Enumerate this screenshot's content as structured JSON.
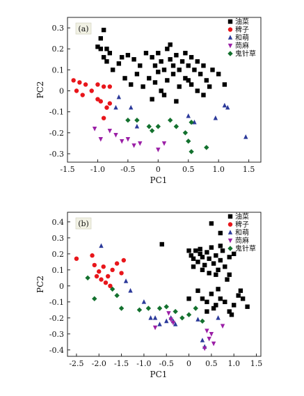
{
  "chart_data": [
    {
      "panel": "(a)",
      "type": "scatter",
      "xlabel": "PC1",
      "ylabel": "PC2",
      "xlim": [
        -1.5,
        1.7
      ],
      "ylim": [
        -0.34,
        0.35
      ],
      "xticks": [
        -1.5,
        -1.0,
        -0.5,
        0,
        0.5,
        1.0,
        1.5
      ],
      "xtick_labels": [
        "-1.5",
        "-1.0",
        "-0.5",
        "0",
        "0.5",
        "1.0",
        "1.5"
      ],
      "yticks": [
        -0.3,
        -0.2,
        -0.1,
        0,
        0.1,
        0.2,
        0.3
      ],
      "ytick_labels": [
        "-0.3",
        "-0.2",
        "-0.1",
        "0",
        "0.1",
        "0.2",
        "0.3"
      ],
      "legend_position": "top-right",
      "series": [
        {
          "name": "油菜",
          "marker": "square",
          "color": "#000000",
          "points": [
            [
              -0.9,
              0.29
            ],
            [
              -0.95,
              0.25
            ],
            [
              -1.0,
              0.21
            ],
            [
              -0.95,
              0.2
            ],
            [
              -0.85,
              0.2
            ],
            [
              -0.8,
              0.18
            ],
            [
              -0.9,
              0.16
            ],
            [
              -0.6,
              0.16
            ],
            [
              -0.5,
              0.17
            ],
            [
              -0.4,
              0.15
            ],
            [
              -0.3,
              0.12
            ],
            [
              -0.2,
              0.18
            ],
            [
              -0.1,
              0.16
            ],
            [
              -0.05,
              0.12
            ],
            [
              0,
              0.18
            ],
            [
              0.05,
              0.14
            ],
            [
              0.1,
              0.1
            ],
            [
              0.15,
              0.2
            ],
            [
              0.2,
              0.15
            ],
            [
              0.25,
              0.12
            ],
            [
              0.3,
              0.17
            ],
            [
              0.35,
              0.1
            ],
            [
              0.4,
              0.14
            ],
            [
              0.45,
              0.18
            ],
            [
              0.5,
              0.12
            ],
            [
              0.55,
              0.16
            ],
            [
              0.6,
              0.1
            ],
            [
              0.65,
              0.14
            ],
            [
              0.7,
              0.08
            ],
            [
              0.75,
              0.12
            ],
            [
              0.8,
              0.05
            ],
            [
              0.9,
              0.1
            ],
            [
              1.0,
              0.08
            ],
            [
              1.1,
              0.03
            ],
            [
              -0.85,
              0.14
            ],
            [
              -0.75,
              0.1
            ],
            [
              -0.65,
              0.13
            ],
            [
              -0.55,
              0.06
            ],
            [
              -0.45,
              0.03
            ],
            [
              -0.35,
              0.08
            ],
            [
              -0.25,
              0.02
            ],
            [
              -0.15,
              0.06
            ],
            [
              -0.05,
              0.04
            ],
            [
              0.05,
              0.0
            ],
            [
              0.15,
              0.05
            ],
            [
              0.25,
              0.08
            ],
            [
              0.35,
              0.02
            ],
            [
              0.45,
              0.06
            ],
            [
              0.55,
              0.03
            ],
            [
              0.65,
              0.0
            ],
            [
              0.75,
              -0.02
            ],
            [
              0.85,
              0.02
            ],
            [
              0.3,
              -0.05
            ],
            [
              0.1,
              -0.02
            ],
            [
              -0.1,
              -0.04
            ],
            [
              0.2,
              0.22
            ],
            [
              0.5,
              0.05
            ],
            [
              0.0,
              0.09
            ]
          ]
        },
        {
          "name": "稗子",
          "marker": "circle",
          "color": "#e8161b",
          "points": [
            [
              -1.4,
              0.05
            ],
            [
              -1.35,
              0.0
            ],
            [
              -1.3,
              0.04
            ],
            [
              -1.25,
              -0.02
            ],
            [
              -1.2,
              0.03
            ],
            [
              -1.1,
              0.0
            ],
            [
              -1.0,
              0.03
            ],
            [
              -0.9,
              0.02
            ],
            [
              -0.8,
              0.02
            ],
            [
              -0.95,
              -0.05
            ],
            [
              -0.85,
              -0.08
            ],
            [
              -0.8,
              -0.06
            ],
            [
              -0.9,
              -0.13
            ],
            [
              -1.0,
              -0.04
            ]
          ]
        },
        {
          "name": "和萌",
          "marker": "triangle-up",
          "color": "#2c3a9a",
          "points": [
            [
              -0.65,
              -0.03
            ],
            [
              -0.7,
              -0.08
            ],
            [
              -0.45,
              -0.08
            ],
            [
              -0.35,
              -0.17
            ],
            [
              0.5,
              -0.12
            ],
            [
              0.6,
              -0.15
            ],
            [
              0.95,
              -0.13
            ],
            [
              1.1,
              -0.07
            ],
            [
              1.15,
              -0.08
            ],
            [
              1.45,
              -0.22
            ]
          ]
        },
        {
          "name": "茼麻",
          "marker": "triangle-down",
          "color": "#9b1fa6",
          "points": [
            [
              -1.05,
              -0.18
            ],
            [
              -0.8,
              -0.19
            ],
            [
              -0.7,
              -0.21
            ],
            [
              -0.6,
              -0.24
            ],
            [
              -0.5,
              -0.23
            ],
            [
              -0.4,
              -0.26
            ],
            [
              -0.3,
              -0.25
            ],
            [
              0.0,
              -0.28
            ],
            [
              0.1,
              -0.25
            ],
            [
              -0.95,
              -0.23
            ]
          ]
        },
        {
          "name": "鬼针草",
          "marker": "diamond",
          "color": "#13712e",
          "points": [
            [
              -0.5,
              -0.14
            ],
            [
              -0.35,
              -0.14
            ],
            [
              -0.15,
              -0.17
            ],
            [
              -0.1,
              -0.19
            ],
            [
              0.0,
              -0.17
            ],
            [
              0.2,
              -0.14
            ],
            [
              0.3,
              -0.17
            ],
            [
              0.45,
              -0.2
            ],
            [
              0.5,
              -0.24
            ],
            [
              0.55,
              -0.29
            ],
            [
              0.8,
              -0.27
            ],
            [
              0.55,
              -0.15
            ]
          ]
        }
      ]
    },
    {
      "panel": "(b)",
      "type": "scatter",
      "xlabel": "PC1",
      "ylabel": "PC2",
      "xlim": [
        -2.7,
        1.6
      ],
      "ylim": [
        -0.44,
        0.46
      ],
      "xticks": [
        -2.5,
        -2.0,
        -1.5,
        -1.0,
        -0.5,
        0,
        0.5,
        1.0,
        1.5
      ],
      "xtick_labels": [
        "-2.5",
        "-2.0",
        "-1.5",
        "-1.0",
        "-0.5",
        "0",
        "0.5",
        "1.0",
        "1.5"
      ],
      "yticks": [
        -0.4,
        -0.3,
        -0.2,
        -0.1,
        0,
        0.1,
        0.2,
        0.3,
        0.4
      ],
      "ytick_labels": [
        "-0.4",
        "-0.3",
        "-0.2",
        "-0.1",
        "0",
        "0.1",
        "0.2",
        "0.3",
        "0.4"
      ],
      "legend_position": "top-right",
      "series": [
        {
          "name": "油菜",
          "marker": "square",
          "color": "#000000",
          "points": [
            [
              0.5,
              0.39
            ],
            [
              0.7,
              0.33
            ],
            [
              -0.6,
              0.26
            ],
            [
              0.0,
              0.22
            ],
            [
              0.05,
              0.19
            ],
            [
              0.1,
              0.17
            ],
            [
              0.15,
              0.22
            ],
            [
              0.2,
              0.15
            ],
            [
              0.25,
              0.2
            ],
            [
              0.3,
              0.18
            ],
            [
              0.35,
              0.13
            ],
            [
              0.4,
              0.21
            ],
            [
              0.45,
              0.17
            ],
            [
              0.5,
              0.24
            ],
            [
              0.55,
              0.14
            ],
            [
              0.6,
              0.19
            ],
            [
              0.65,
              0.1
            ],
            [
              0.7,
              0.16
            ],
            [
              0.75,
              0.22
            ],
            [
              0.8,
              0.12
            ],
            [
              0.9,
              0.18
            ],
            [
              1.0,
              0.2
            ],
            [
              0.3,
              0.1
            ],
            [
              0.45,
              0.08
            ],
            [
              0.6,
              0.07
            ],
            [
              0.9,
              0.07
            ],
            [
              0.2,
              -0.03
            ],
            [
              0.3,
              -0.08
            ],
            [
              0.4,
              -0.1
            ],
            [
              0.5,
              -0.05
            ],
            [
              0.55,
              -0.14
            ],
            [
              0.6,
              -0.12
            ],
            [
              0.7,
              -0.08
            ],
            [
              0.8,
              -0.1
            ],
            [
              0.9,
              -0.16
            ],
            [
              1.0,
              -0.12
            ],
            [
              1.1,
              -0.06
            ],
            [
              1.2,
              -0.08
            ],
            [
              1.3,
              -0.13
            ],
            [
              0.95,
              -0.18
            ],
            [
              0.0,
              -0.08
            ],
            [
              0.25,
              0.23
            ],
            [
              0.7,
              0.25
            ],
            [
              0.85,
              0.04
            ],
            [
              0.4,
              -0.16
            ],
            [
              0.1,
              0.12
            ],
            [
              1.15,
              -0.03
            ],
            [
              0.65,
              -0.02
            ]
          ]
        },
        {
          "name": "稗子",
          "marker": "circle",
          "color": "#e8161b",
          "points": [
            [
              -2.5,
              0.17
            ],
            [
              -2.15,
              0.19
            ],
            [
              -2.1,
              0.13
            ],
            [
              -2.0,
              0.09
            ],
            [
              -1.9,
              0.12
            ],
            [
              -1.8,
              0.06
            ],
            [
              -1.7,
              0.1
            ],
            [
              -1.6,
              0.14
            ],
            [
              -1.5,
              0.08
            ],
            [
              -1.45,
              0.16
            ],
            [
              -1.95,
              0.04
            ],
            [
              -1.85,
              0.02
            ],
            [
              -2.05,
              0.06
            ],
            [
              -1.75,
              0.0
            ]
          ]
        },
        {
          "name": "和萌",
          "marker": "triangle-up",
          "color": "#2c3a9a",
          "points": [
            [
              -1.95,
              0.25
            ],
            [
              -1.4,
              0.03
            ],
            [
              -1.3,
              -0.03
            ],
            [
              -1.0,
              -0.1
            ],
            [
              -0.85,
              -0.2
            ],
            [
              -0.75,
              -0.2
            ],
            [
              -0.65,
              -0.24
            ],
            [
              -0.5,
              -0.22
            ],
            [
              -0.4,
              -0.2
            ],
            [
              -0.35,
              -0.22
            ],
            [
              -0.3,
              -0.24
            ],
            [
              0.2,
              -0.21
            ],
            [
              0.3,
              -0.34
            ],
            [
              0.35,
              -0.38
            ],
            [
              0.65,
              -0.2
            ]
          ]
        },
        {
          "name": "茼麻",
          "marker": "triangle-down",
          "color": "#9b1fa6",
          "points": [
            [
              -0.75,
              -0.26
            ],
            [
              -0.4,
              -0.21
            ],
            [
              -0.35,
              -0.23
            ],
            [
              0.4,
              -0.28
            ],
            [
              0.45,
              -0.33
            ],
            [
              0.5,
              -0.3
            ],
            [
              0.55,
              -0.36
            ],
            [
              0.75,
              -0.25
            ],
            [
              -0.45,
              -0.17
            ],
            [
              0.35,
              -0.39
            ]
          ]
        },
        {
          "name": "鬼针草",
          "marker": "diamond",
          "color": "#13712e",
          "points": [
            [
              -2.25,
              0.05
            ],
            [
              -2.1,
              -0.08
            ],
            [
              -1.7,
              -0.02
            ],
            [
              -1.6,
              -0.06
            ],
            [
              -1.5,
              -0.14
            ],
            [
              -1.1,
              -0.15
            ],
            [
              -0.9,
              -0.14
            ],
            [
              -0.65,
              -0.14
            ],
            [
              -0.5,
              -0.13
            ],
            [
              -0.3,
              -0.16
            ],
            [
              0.0,
              -0.18
            ],
            [
              0.15,
              -0.14
            ],
            [
              0.3,
              -0.22
            ],
            [
              -0.15,
              -0.2
            ]
          ]
        }
      ]
    }
  ]
}
